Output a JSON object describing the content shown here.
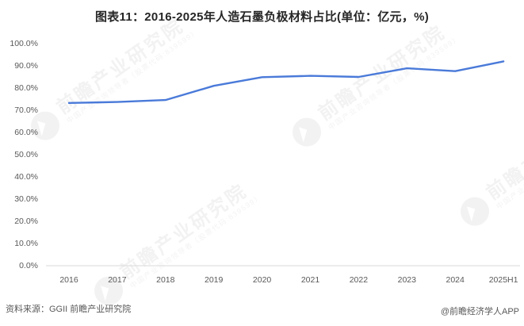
{
  "header": {
    "title": "图表11：2016-2025年人造石墨负极材料占比(单位：亿元，%)"
  },
  "chart_data": {
    "type": "line",
    "title": "图表11：2016-2025年人造石墨负极材料占比(单位：亿元，%)",
    "categories": [
      "2016",
      "2017",
      "2018",
      "2019",
      "2020",
      "2021",
      "2022",
      "2023",
      "2024",
      "2025H1"
    ],
    "values": [
      73.3,
      73.7,
      74.6,
      81.0,
      84.9,
      85.5,
      85.0,
      88.9,
      87.6,
      92.0
    ],
    "unit": "%",
    "yticks": [
      "100.0%",
      "90.0%",
      "80.0%",
      "70.0%",
      "60.0%",
      "50.0%",
      "40.0%",
      "30.0%",
      "20.0%",
      "10.0%",
      "0.0%"
    ],
    "ylim": [
      0,
      100
    ],
    "grid": false,
    "legend_position": "none",
    "line_color": "#4a7ad9",
    "axis_line_color": "#d9d9d9",
    "tick_color": "#595959"
  },
  "watermark": {
    "logo": "qianzhan-logo",
    "text": "前瞻产业研究院",
    "subtext": "中国产业咨询领导者（股票代码:839599）"
  },
  "footer": {
    "source": "资料来源：GGII 前瞻产业研究院",
    "credit": "@前瞻经济学人APP"
  }
}
